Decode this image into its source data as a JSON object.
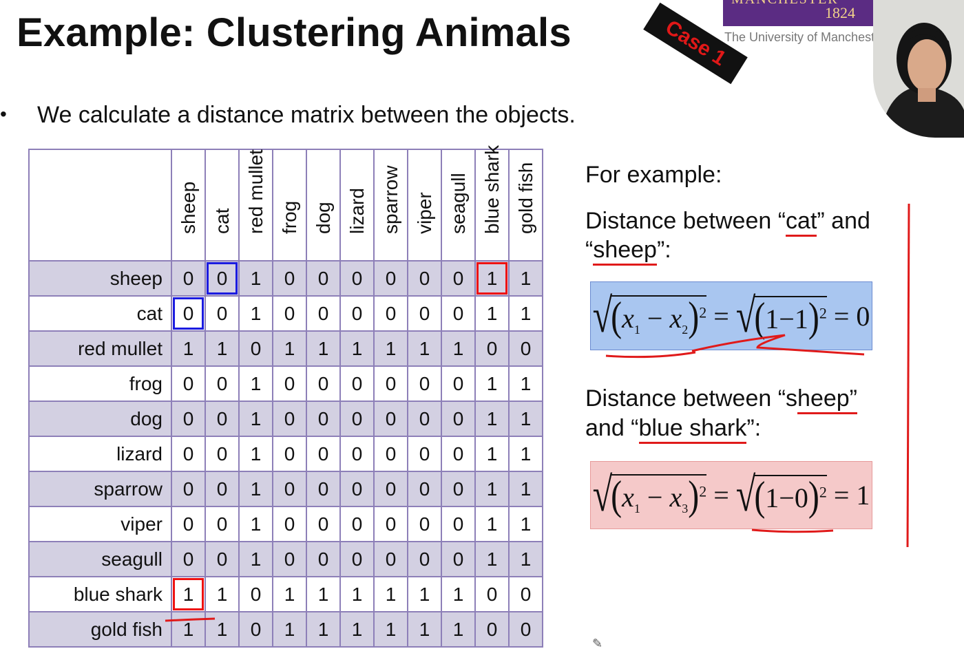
{
  "slide": {
    "title": "Example: Clustering Animals",
    "badge": "Case 1",
    "logo_top": "MANCHESTER",
    "logo_year": "1824",
    "logo_sub": "The University of Manchester",
    "bullet": "We calculate a distance matrix between the objects."
  },
  "matrix": {
    "columns": [
      "sheep",
      "cat",
      "red mullet",
      "frog",
      "dog",
      "lizard",
      "sparrow",
      "viper",
      "seagull",
      "blue shark",
      "gold fish"
    ],
    "rows": [
      {
        "label": "sheep",
        "values": [
          "0",
          "0",
          "1",
          "0",
          "0",
          "0",
          "0",
          "0",
          "0",
          "1",
          "1"
        ]
      },
      {
        "label": "cat",
        "values": [
          "0",
          "0",
          "1",
          "0",
          "0",
          "0",
          "0",
          "0",
          "0",
          "1",
          "1"
        ]
      },
      {
        "label": "red mullet",
        "values": [
          "1",
          "1",
          "0",
          "1",
          "1",
          "1",
          "1",
          "1",
          "1",
          "0",
          "0"
        ]
      },
      {
        "label": "frog",
        "values": [
          "0",
          "0",
          "1",
          "0",
          "0",
          "0",
          "0",
          "0",
          "0",
          "1",
          "1"
        ]
      },
      {
        "label": "dog",
        "values": [
          "0",
          "0",
          "1",
          "0",
          "0",
          "0",
          "0",
          "0",
          "0",
          "1",
          "1"
        ]
      },
      {
        "label": "lizard",
        "values": [
          "0",
          "0",
          "1",
          "0",
          "0",
          "0",
          "0",
          "0",
          "0",
          "1",
          "1"
        ]
      },
      {
        "label": "sparrow",
        "values": [
          "0",
          "0",
          "1",
          "0",
          "0",
          "0",
          "0",
          "0",
          "0",
          "1",
          "1"
        ]
      },
      {
        "label": "viper",
        "values": [
          "0",
          "0",
          "1",
          "0",
          "0",
          "0",
          "0",
          "0",
          "0",
          "1",
          "1"
        ]
      },
      {
        "label": "seagull",
        "values": [
          "0",
          "0",
          "1",
          "0",
          "0",
          "0",
          "0",
          "0",
          "0",
          "1",
          "1"
        ]
      },
      {
        "label": "blue shark",
        "values": [
          "1",
          "1",
          "0",
          "1",
          "1",
          "1",
          "1",
          "1",
          "1",
          "0",
          "0"
        ]
      },
      {
        "label": "gold fish",
        "values": [
          "1",
          "1",
          "0",
          "1",
          "1",
          "1",
          "1",
          "1",
          "1",
          "0",
          "0"
        ]
      }
    ]
  },
  "example": {
    "heading": "For example:",
    "case1_pre": "Distance between “",
    "case1_a": "cat",
    "case1_mid": "” and",
    "case1_open": "“",
    "case1_b": "sheep",
    "case1_post": "”:",
    "case2_pre": "Distance between “s",
    "case2_a": "heep”",
    "case2_line2_pre": "and “",
    "case2_b": "blue shark",
    "case2_post": "”:",
    "formula1": {
      "lhs_a": "x",
      "lhs_a_sub": "1",
      "lhs_b": "x",
      "lhs_b_sub": "2",
      "rhs": "1−1",
      "result": "0",
      "exp": "2"
    },
    "formula2": {
      "lhs_a": "x",
      "lhs_a_sub": "1",
      "lhs_b": "x",
      "lhs_b_sub": "3",
      "rhs": "1−0",
      "result": "1",
      "exp": "2"
    }
  },
  "colors": {
    "accent_purple": "#5b2c83",
    "annotation_red": "#e01a1a",
    "highlight_blue": "#1b1be0",
    "formula_blue_bg": "#a9c6f0",
    "formula_pink_bg": "#f5c9c9"
  }
}
